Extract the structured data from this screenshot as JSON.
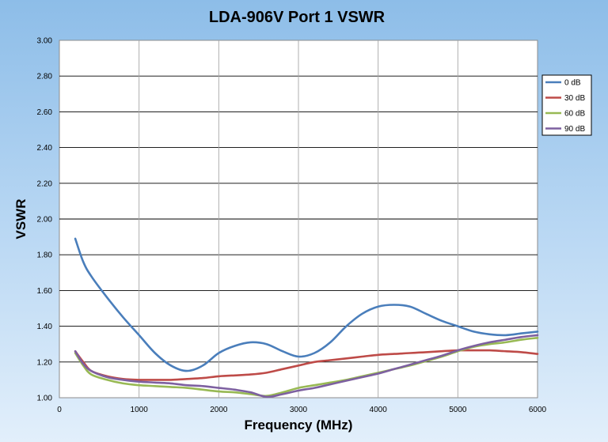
{
  "chart_data": {
    "type": "line",
    "title": "LDA-906V Port 1 VSWR",
    "xlabel": "Frequency (MHz)",
    "ylabel": "VSWR",
    "xlim": [
      0,
      6000
    ],
    "ylim": [
      1.0,
      3.0
    ],
    "x_ticks": [
      "0",
      "1000",
      "2000",
      "3000",
      "4000",
      "5000",
      "6000"
    ],
    "y_ticks": [
      "1.00",
      "1.20",
      "1.40",
      "1.60",
      "1.80",
      "2.00",
      "2.20",
      "2.40",
      "2.60",
      "2.80",
      "3.00"
    ],
    "grid": true,
    "legend_position": "right",
    "x": [
      200,
      300,
      400,
      600,
      800,
      1000,
      1200,
      1400,
      1600,
      1800,
      2000,
      2200,
      2400,
      2600,
      2800,
      3000,
      3200,
      3400,
      3600,
      3800,
      4000,
      4200,
      4400,
      4600,
      4800,
      5000,
      5200,
      5400,
      5600,
      5800,
      6000
    ],
    "series": [
      {
        "name": "0 dB",
        "color": "#4a7ebb",
        "values": [
          1.89,
          1.76,
          1.68,
          1.56,
          1.45,
          1.35,
          1.25,
          1.18,
          1.15,
          1.18,
          1.25,
          1.29,
          1.31,
          1.3,
          1.26,
          1.23,
          1.25,
          1.31,
          1.4,
          1.47,
          1.51,
          1.52,
          1.51,
          1.47,
          1.43,
          1.4,
          1.37,
          1.355,
          1.35,
          1.36,
          1.37
        ]
      },
      {
        "name": "30 dB",
        "color": "#be4b48",
        "values": [
          1.26,
          1.2,
          1.15,
          1.12,
          1.105,
          1.1,
          1.1,
          1.1,
          1.105,
          1.11,
          1.12,
          1.125,
          1.13,
          1.14,
          1.16,
          1.18,
          1.2,
          1.21,
          1.22,
          1.23,
          1.24,
          1.245,
          1.25,
          1.255,
          1.26,
          1.265,
          1.265,
          1.265,
          1.26,
          1.255,
          1.245
        ]
      },
      {
        "name": "60 dB",
        "color": "#98b954",
        "values": [
          1.25,
          1.18,
          1.13,
          1.1,
          1.08,
          1.07,
          1.065,
          1.06,
          1.055,
          1.045,
          1.035,
          1.03,
          1.02,
          1.01,
          1.03,
          1.055,
          1.07,
          1.085,
          1.1,
          1.12,
          1.14,
          1.16,
          1.18,
          1.205,
          1.23,
          1.26,
          1.285,
          1.3,
          1.31,
          1.325,
          1.335
        ]
      },
      {
        "name": "90 dB",
        "color": "#7d60a0",
        "values": [
          1.26,
          1.19,
          1.15,
          1.115,
          1.1,
          1.09,
          1.085,
          1.08,
          1.07,
          1.065,
          1.055,
          1.045,
          1.03,
          1.005,
          1.02,
          1.04,
          1.055,
          1.075,
          1.095,
          1.115,
          1.135,
          1.16,
          1.185,
          1.21,
          1.235,
          1.265,
          1.29,
          1.31,
          1.325,
          1.34,
          1.35
        ]
      }
    ]
  }
}
